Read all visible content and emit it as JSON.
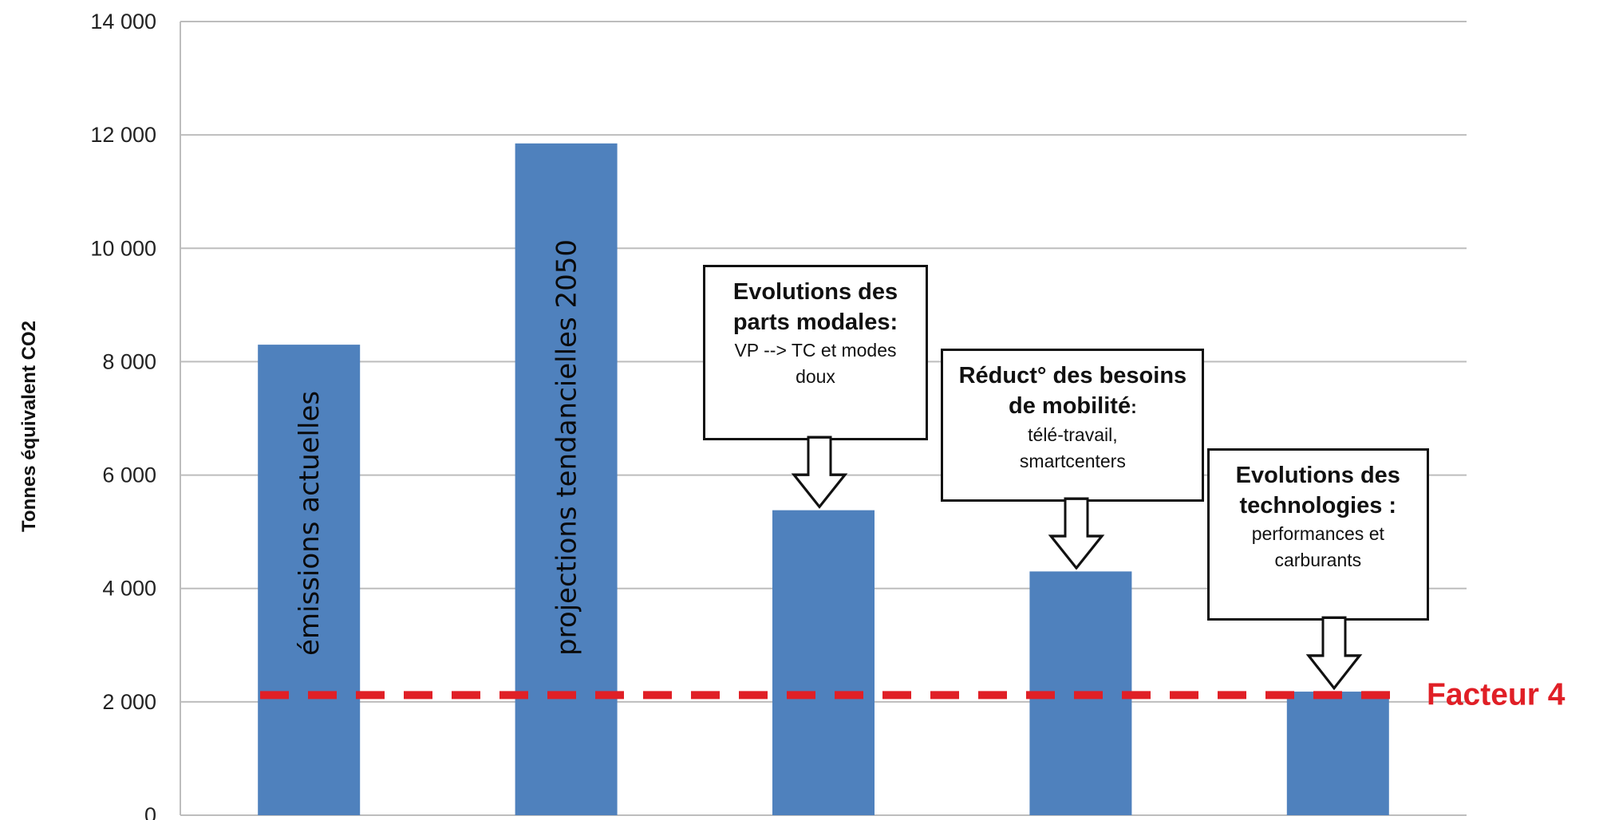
{
  "chart_data": {
    "type": "bar",
    "ylabel": "Tonnes équivalent CO2",
    "ylim": [
      0,
      14000
    ],
    "yticks": [
      0,
      2000,
      4000,
      6000,
      8000,
      10000,
      12000,
      14000
    ],
    "ytick_labels": [
      "0",
      "2 000",
      "4 000",
      "6 000",
      "8 000",
      "10 000",
      "12 000",
      "14 000"
    ],
    "grid": true,
    "bar_color": "#4f81bd",
    "bars": [
      {
        "value": 8300,
        "label": "émissions actuelles"
      },
      {
        "value": 11850,
        "label": "projections tendancielles 2050"
      },
      {
        "value": 5380,
        "label": ""
      },
      {
        "value": 4300,
        "label": ""
      },
      {
        "value": 2180,
        "label": ""
      }
    ],
    "target_line": {
      "value": 2120,
      "label": "Facteur 4",
      "color": "#e01f26",
      "style": "dashed"
    },
    "callouts": [
      {
        "title_line1": "Evolutions des",
        "title_line2": "parts modales:",
        "detail": "VP --> TC et modes\ndoux",
        "points_to_bar": 3
      },
      {
        "title_line1": "Réduct° des besoins",
        "title_bold_tail": "de mobilité",
        "title_rest_tail": ":",
        "detail": "télé-travail,\nsmartcenters",
        "points_to_bar": 4
      },
      {
        "title_line1": "Evolutions des",
        "title_line2": "technologies :",
        "detail": "performances et\ncarburants",
        "points_to_bar": 5
      }
    ]
  }
}
